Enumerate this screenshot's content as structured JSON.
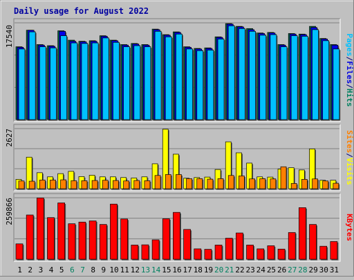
{
  "chart_data": {
    "title": "Daily usage for August 2022",
    "type": "bar",
    "categories": [
      "1",
      "2",
      "3",
      "4",
      "5",
      "6",
      "7",
      "8",
      "9",
      "10",
      "11",
      "12",
      "13",
      "14",
      "15",
      "16",
      "17",
      "18",
      "19",
      "20",
      "21",
      "22",
      "23",
      "24",
      "25",
      "26",
      "27",
      "28",
      "29",
      "30",
      "31"
    ],
    "weekend_days": [
      "6",
      "7",
      "13",
      "14",
      "20",
      "21",
      "27",
      "28"
    ],
    "panels": [
      {
        "id": "hits",
        "ymax": 17540,
        "ymax_label": "17540",
        "side_label": [
          {
            "text": "Pages",
            "color": "#00c0ff"
          },
          {
            "text": "/",
            "color": "#000080"
          },
          {
            "text": "Files",
            "color": "#0000e0"
          },
          {
            "text": "/",
            "color": "#000080"
          },
          {
            "text": "Hits",
            "color": "#008060"
          }
        ],
        "series": [
          {
            "name": "Hits",
            "color": "#007050",
            "values": [
              13200,
              16200,
              13600,
              13400,
              16100,
              14400,
              14200,
              14300,
              15200,
              14400,
              13600,
              13800,
              13600,
              16400,
              15400,
              15900,
              13200,
              12900,
              13000,
              15000,
              17400,
              16900,
              16500,
              15700,
              15800,
              13600,
              15600,
              15500,
              16900,
              14700,
              13600
            ]
          },
          {
            "name": "Files",
            "color": "#0000e8",
            "values": [
              13100,
              16200,
              13500,
              13300,
              16000,
              14200,
              14100,
              14200,
              15100,
              14300,
              13500,
              13700,
              13500,
              16300,
              15300,
              15800,
              13100,
              12800,
              12900,
              14900,
              17300,
              16800,
              16300,
              15600,
              15700,
              13500,
              15500,
              15400,
              16700,
              14600,
              13500
            ]
          },
          {
            "name": "Pages",
            "color": "#00c0ff",
            "values": [
              12800,
              15900,
              13200,
              13000,
              15200,
              13900,
              13800,
              13900,
              14800,
              14000,
              13200,
              13400,
              13200,
              16000,
              15000,
              15500,
              12800,
              12500,
              12600,
              14600,
              17000,
              16500,
              16000,
              15300,
              15400,
              13200,
              15200,
              15100,
              16300,
              14300,
              12800
            ]
          }
        ]
      },
      {
        "id": "visits",
        "ymax": 2627,
        "ymax_label": "2627",
        "side_label": [
          {
            "text": "Sites",
            "color": "#ff8000"
          },
          {
            "text": "/",
            "color": "#000080"
          },
          {
            "text": "Visits",
            "color": "#ffff00"
          }
        ],
        "series": [
          {
            "name": "Visits",
            "color": "#ffff00",
            "values": [
              410,
              1380,
              700,
              520,
              660,
              760,
              530,
              590,
              520,
              520,
              490,
              470,
              520,
              1090,
              2600,
              1510,
              460,
              490,
              510,
              840,
              2050,
              1570,
              1120,
              520,
              510,
              860,
              920,
              820,
              1740,
              370,
              370
            ]
          },
          {
            "name": "Sites",
            "color": "#ff8000",
            "values": [
              340,
              330,
              380,
              380,
              390,
              350,
              350,
              360,
              370,
              360,
              340,
              360,
              350,
              580,
              620,
              620,
              440,
              440,
              420,
              440,
              580,
              560,
              430,
              440,
              430,
              960,
              230,
              410,
              430,
              340,
              240
            ]
          }
        ]
      },
      {
        "id": "kbytes",
        "ymax": 259866,
        "ymax_label": "259866",
        "side_label": [
          {
            "text": "KBytes",
            "color": "#ff0000"
          }
        ],
        "series": [
          {
            "name": "KBytes",
            "color": "#ff0000",
            "values": [
              65000,
              187000,
              259000,
              176000,
              238000,
              150000,
              157000,
              162000,
              147000,
              233000,
              170000,
              60000,
              61000,
              82000,
              171000,
              198000,
              126000,
              44000,
              42000,
              60000,
              89000,
              111000,
              60000,
              44000,
              57000,
              43000,
              113000,
              218000,
              147000,
              55000,
              75000
            ]
          }
        ]
      }
    ]
  }
}
